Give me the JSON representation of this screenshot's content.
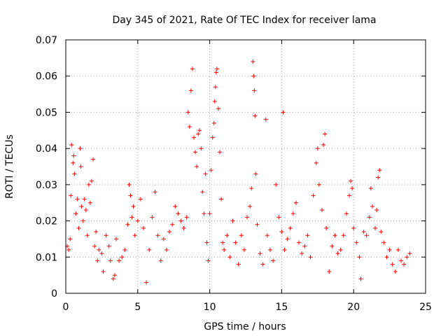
{
  "chart_data": {
    "type": "scatter",
    "title": "Day 345 of 2021, Rate Of TEC Index for receiver lama",
    "xlabel": "GPS time / hours",
    "ylabel": "ROTI / TECUs",
    "xlim": [
      0,
      25
    ],
    "ylim": [
      0,
      0.07
    ],
    "xticks": [
      0,
      5,
      10,
      15,
      20,
      25
    ],
    "xtick_labels": [
      "0",
      "5",
      "10",
      "15",
      "20",
      "25"
    ],
    "yticks": [
      0,
      0.01,
      0.02,
      0.03,
      0.04,
      0.05,
      0.06,
      0.07
    ],
    "ytick_labels": [
      "0",
      "0.01",
      "0.02",
      "0.03",
      "0.04",
      "0.05",
      "0.06",
      "0.07"
    ],
    "grid": true,
    "marker": "plus",
    "color": "#ff0000",
    "series": [
      {
        "points": [
          [
            0.1,
            0.013
          ],
          [
            0.2,
            0.012
          ],
          [
            0.3,
            0.015
          ],
          [
            0.35,
            0.027
          ],
          [
            0.4,
            0.041
          ],
          [
            0.5,
            0.036
          ],
          [
            0.55,
            0.038
          ],
          [
            0.6,
            0.033
          ],
          [
            0.7,
            0.022
          ],
          [
            0.8,
            0.026
          ],
          [
            0.9,
            0.018
          ],
          [
            1.0,
            0.04
          ],
          [
            1.05,
            0.035
          ],
          [
            1.1,
            0.024
          ],
          [
            1.2,
            0.02
          ],
          [
            1.3,
            0.026
          ],
          [
            1.4,
            0.023
          ],
          [
            1.5,
            0.016
          ],
          [
            1.6,
            0.03
          ],
          [
            1.7,
            0.025
          ],
          [
            1.8,
            0.031
          ],
          [
            1.9,
            0.037
          ],
          [
            2.0,
            0.013
          ],
          [
            2.1,
            0.017
          ],
          [
            2.2,
            0.009
          ],
          [
            2.3,
            0.012
          ],
          [
            2.5,
            0.011
          ],
          [
            2.6,
            0.006
          ],
          [
            2.8,
            0.016
          ],
          [
            3.0,
            0.013
          ],
          [
            3.1,
            0.009
          ],
          [
            3.3,
            0.004
          ],
          [
            3.4,
            0.005
          ],
          [
            3.5,
            0.015
          ],
          [
            3.7,
            0.009
          ],
          [
            3.9,
            0.01
          ],
          [
            4.1,
            0.012
          ],
          [
            4.3,
            0.019
          ],
          [
            4.4,
            0.03
          ],
          [
            4.5,
            0.027
          ],
          [
            4.6,
            0.021
          ],
          [
            4.7,
            0.024
          ],
          [
            4.8,
            0.016
          ],
          [
            5.0,
            0.02
          ],
          [
            5.2,
            0.026
          ],
          [
            5.4,
            0.018
          ],
          [
            5.6,
            0.003
          ],
          [
            5.8,
            0.012
          ],
          [
            6.0,
            0.021
          ],
          [
            6.2,
            0.028
          ],
          [
            6.4,
            0.016
          ],
          [
            6.6,
            0.009
          ],
          [
            6.8,
            0.015
          ],
          [
            7.0,
            0.012
          ],
          [
            7.2,
            0.017
          ],
          [
            7.4,
            0.019
          ],
          [
            7.6,
            0.024
          ],
          [
            7.8,
            0.022
          ],
          [
            8.0,
            0.02
          ],
          [
            8.2,
            0.018
          ],
          [
            8.4,
            0.021
          ],
          [
            8.5,
            0.05
          ],
          [
            8.6,
            0.046
          ],
          [
            8.7,
            0.056
          ],
          [
            8.8,
            0.062
          ],
          [
            8.9,
            0.043
          ],
          [
            9.0,
            0.039
          ],
          [
            9.1,
            0.035
          ],
          [
            9.2,
            0.044
          ],
          [
            9.3,
            0.045
          ],
          [
            9.4,
            0.04
          ],
          [
            9.5,
            0.028
          ],
          [
            9.6,
            0.022
          ],
          [
            9.7,
            0.033
          ],
          [
            9.8,
            0.014
          ],
          [
            9.9,
            0.009
          ],
          [
            10.0,
            0.022
          ],
          [
            10.1,
            0.034
          ],
          [
            10.2,
            0.043
          ],
          [
            10.3,
            0.047
          ],
          [
            10.35,
            0.053
          ],
          [
            10.4,
            0.057
          ],
          [
            10.45,
            0.061
          ],
          [
            10.5,
            0.062
          ],
          [
            10.6,
            0.051
          ],
          [
            10.7,
            0.039
          ],
          [
            10.8,
            0.026
          ],
          [
            10.9,
            0.014
          ],
          [
            11.0,
            0.012
          ],
          [
            11.2,
            0.016
          ],
          [
            11.4,
            0.01
          ],
          [
            11.6,
            0.02
          ],
          [
            11.8,
            0.014
          ],
          [
            12.0,
            0.008
          ],
          [
            12.2,
            0.016
          ],
          [
            12.4,
            0.012
          ],
          [
            12.6,
            0.021
          ],
          [
            12.8,
            0.024
          ],
          [
            12.9,
            0.029
          ],
          [
            13.0,
            0.064
          ],
          [
            13.05,
            0.06
          ],
          [
            13.1,
            0.056
          ],
          [
            13.15,
            0.049
          ],
          [
            13.2,
            0.033
          ],
          [
            13.3,
            0.019
          ],
          [
            13.5,
            0.011
          ],
          [
            13.7,
            0.008
          ],
          [
            13.9,
            0.048
          ],
          [
            14.0,
            0.016
          ],
          [
            14.2,
            0.012
          ],
          [
            14.4,
            0.009
          ],
          [
            14.6,
            0.03
          ],
          [
            14.8,
            0.021
          ],
          [
            15.0,
            0.017
          ],
          [
            15.1,
            0.05
          ],
          [
            15.2,
            0.012
          ],
          [
            15.4,
            0.015
          ],
          [
            15.6,
            0.018
          ],
          [
            15.8,
            0.022
          ],
          [
            16.0,
            0.025
          ],
          [
            16.2,
            0.014
          ],
          [
            16.4,
            0.011
          ],
          [
            16.6,
            0.013
          ],
          [
            16.8,
            0.016
          ],
          [
            17.0,
            0.01
          ],
          [
            17.2,
            0.027
          ],
          [
            17.4,
            0.036
          ],
          [
            17.5,
            0.04
          ],
          [
            17.6,
            0.03
          ],
          [
            17.8,
            0.023
          ],
          [
            17.9,
            0.041
          ],
          [
            18.0,
            0.044
          ],
          [
            18.1,
            0.018
          ],
          [
            18.3,
            0.006
          ],
          [
            18.5,
            0.013
          ],
          [
            18.7,
            0.016
          ],
          [
            18.9,
            0.011
          ],
          [
            19.1,
            0.012
          ],
          [
            19.3,
            0.016
          ],
          [
            19.5,
            0.022
          ],
          [
            19.7,
            0.027
          ],
          [
            19.8,
            0.031
          ],
          [
            19.9,
            0.029
          ],
          [
            20.0,
            0.018
          ],
          [
            20.2,
            0.014
          ],
          [
            20.4,
            0.01
          ],
          [
            20.5,
            0.004
          ],
          [
            20.7,
            0.017
          ],
          [
            20.9,
            0.016
          ],
          [
            21.1,
            0.021
          ],
          [
            21.2,
            0.029
          ],
          [
            21.3,
            0.024
          ],
          [
            21.5,
            0.018
          ],
          [
            21.6,
            0.023
          ],
          [
            21.7,
            0.032
          ],
          [
            21.8,
            0.034
          ],
          [
            21.9,
            0.017
          ],
          [
            22.1,
            0.014
          ],
          [
            22.3,
            0.01
          ],
          [
            22.5,
            0.012
          ],
          [
            22.7,
            0.008
          ],
          [
            22.9,
            0.006
          ],
          [
            23.1,
            0.012
          ],
          [
            23.3,
            0.009
          ],
          [
            23.5,
            0.008
          ],
          [
            23.7,
            0.01
          ],
          [
            23.9,
            0.011
          ]
        ]
      }
    ]
  }
}
